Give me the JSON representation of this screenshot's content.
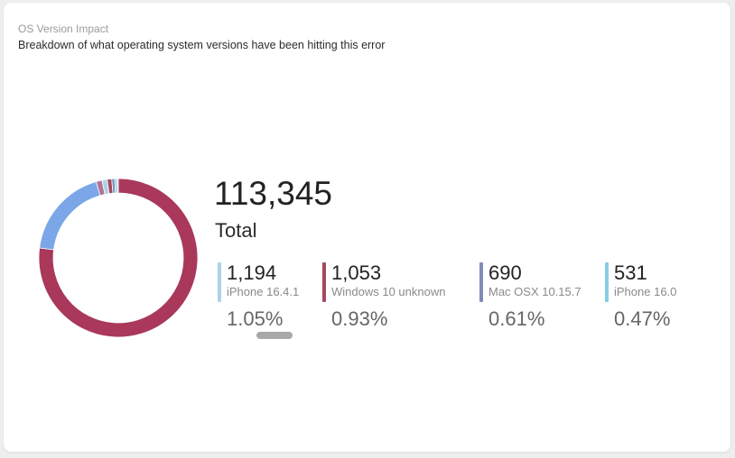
{
  "header": {
    "title": "OS Version Impact",
    "subtitle": "Breakdown of what operating system versions have been hitting this error"
  },
  "summary": {
    "total_value": "113,345",
    "total_label": "Total"
  },
  "stats": [
    {
      "count": "1,194",
      "name": "iPhone 16.4.1",
      "percent": "1.05%",
      "color": "#aed1e6"
    },
    {
      "count": "1,053",
      "name": "Windows 10 unknown",
      "percent": "0.93%",
      "color": "#a5485f"
    },
    {
      "count": "690",
      "name": "Mac OSX 10.15.7",
      "percent": "0.61%",
      "color": "#7f8db7"
    },
    {
      "count": "531",
      "name": "iPhone 16.0",
      "percent": "0.47%",
      "color": "#86cfe3"
    }
  ],
  "chart_data": {
    "type": "pie",
    "style": "donut",
    "slices": [
      {
        "value": 0.77,
        "color": "#a9385b"
      },
      {
        "value": 0.185,
        "color": "#7ba7e8"
      },
      {
        "value": 0.012,
        "color": "#b07396"
      },
      {
        "value": 0.0105,
        "color": "#aed1e6"
      },
      {
        "value": 0.0093,
        "color": "#a5485f"
      },
      {
        "value": 0.0061,
        "color": "#7f8db7"
      },
      {
        "value": 0.0047,
        "color": "#86cfe3"
      },
      {
        "value": 0.0024,
        "color": "#c5c5e5"
      }
    ]
  },
  "colors": {
    "background": "#eeeeee",
    "card": "#ffffff",
    "scroll_indicator": "#a8a8a8"
  }
}
